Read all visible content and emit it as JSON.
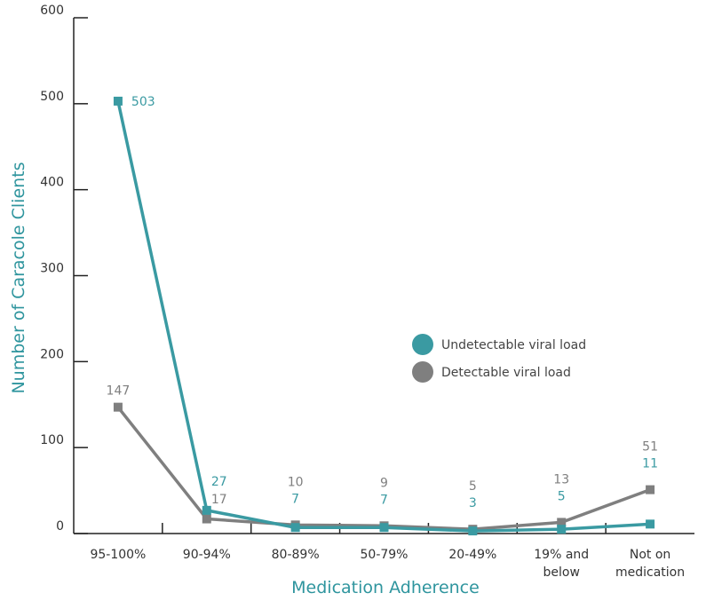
{
  "chart_data": {
    "type": "line",
    "title": "",
    "xlabel": "Medication Adherence",
    "ylabel": "Number of Caracole Clients",
    "categories": [
      [
        "95-100%"
      ],
      [
        "90-94%"
      ],
      [
        "80-89%"
      ],
      [
        "50-79%"
      ],
      [
        "20-49%"
      ],
      [
        "19% and",
        "below"
      ],
      [
        "Not on",
        "medication"
      ]
    ],
    "ylim": [
      0,
      600
    ],
    "yticks": [
      0,
      100,
      200,
      300,
      400,
      500,
      600
    ],
    "grid": false,
    "legend_position": "right",
    "series": [
      {
        "name": "Undetectable viral load",
        "color": "#3a9aa2",
        "values": [
          503,
          27,
          7,
          7,
          3,
          5,
          11
        ],
        "labels": [
          "503",
          "27",
          "7",
          "7",
          "3",
          "5",
          "11"
        ]
      },
      {
        "name": "Detectable viral load",
        "color": "#7f7f7f",
        "values": [
          147,
          17,
          10,
          9,
          5,
          13,
          51
        ],
        "labels": [
          "147",
          "17",
          "10",
          "9",
          "5",
          "13",
          "51"
        ]
      }
    ],
    "colors": {
      "axis": "#222222",
      "tick_text": "#333333",
      "axis_title": "#2f959e"
    }
  }
}
